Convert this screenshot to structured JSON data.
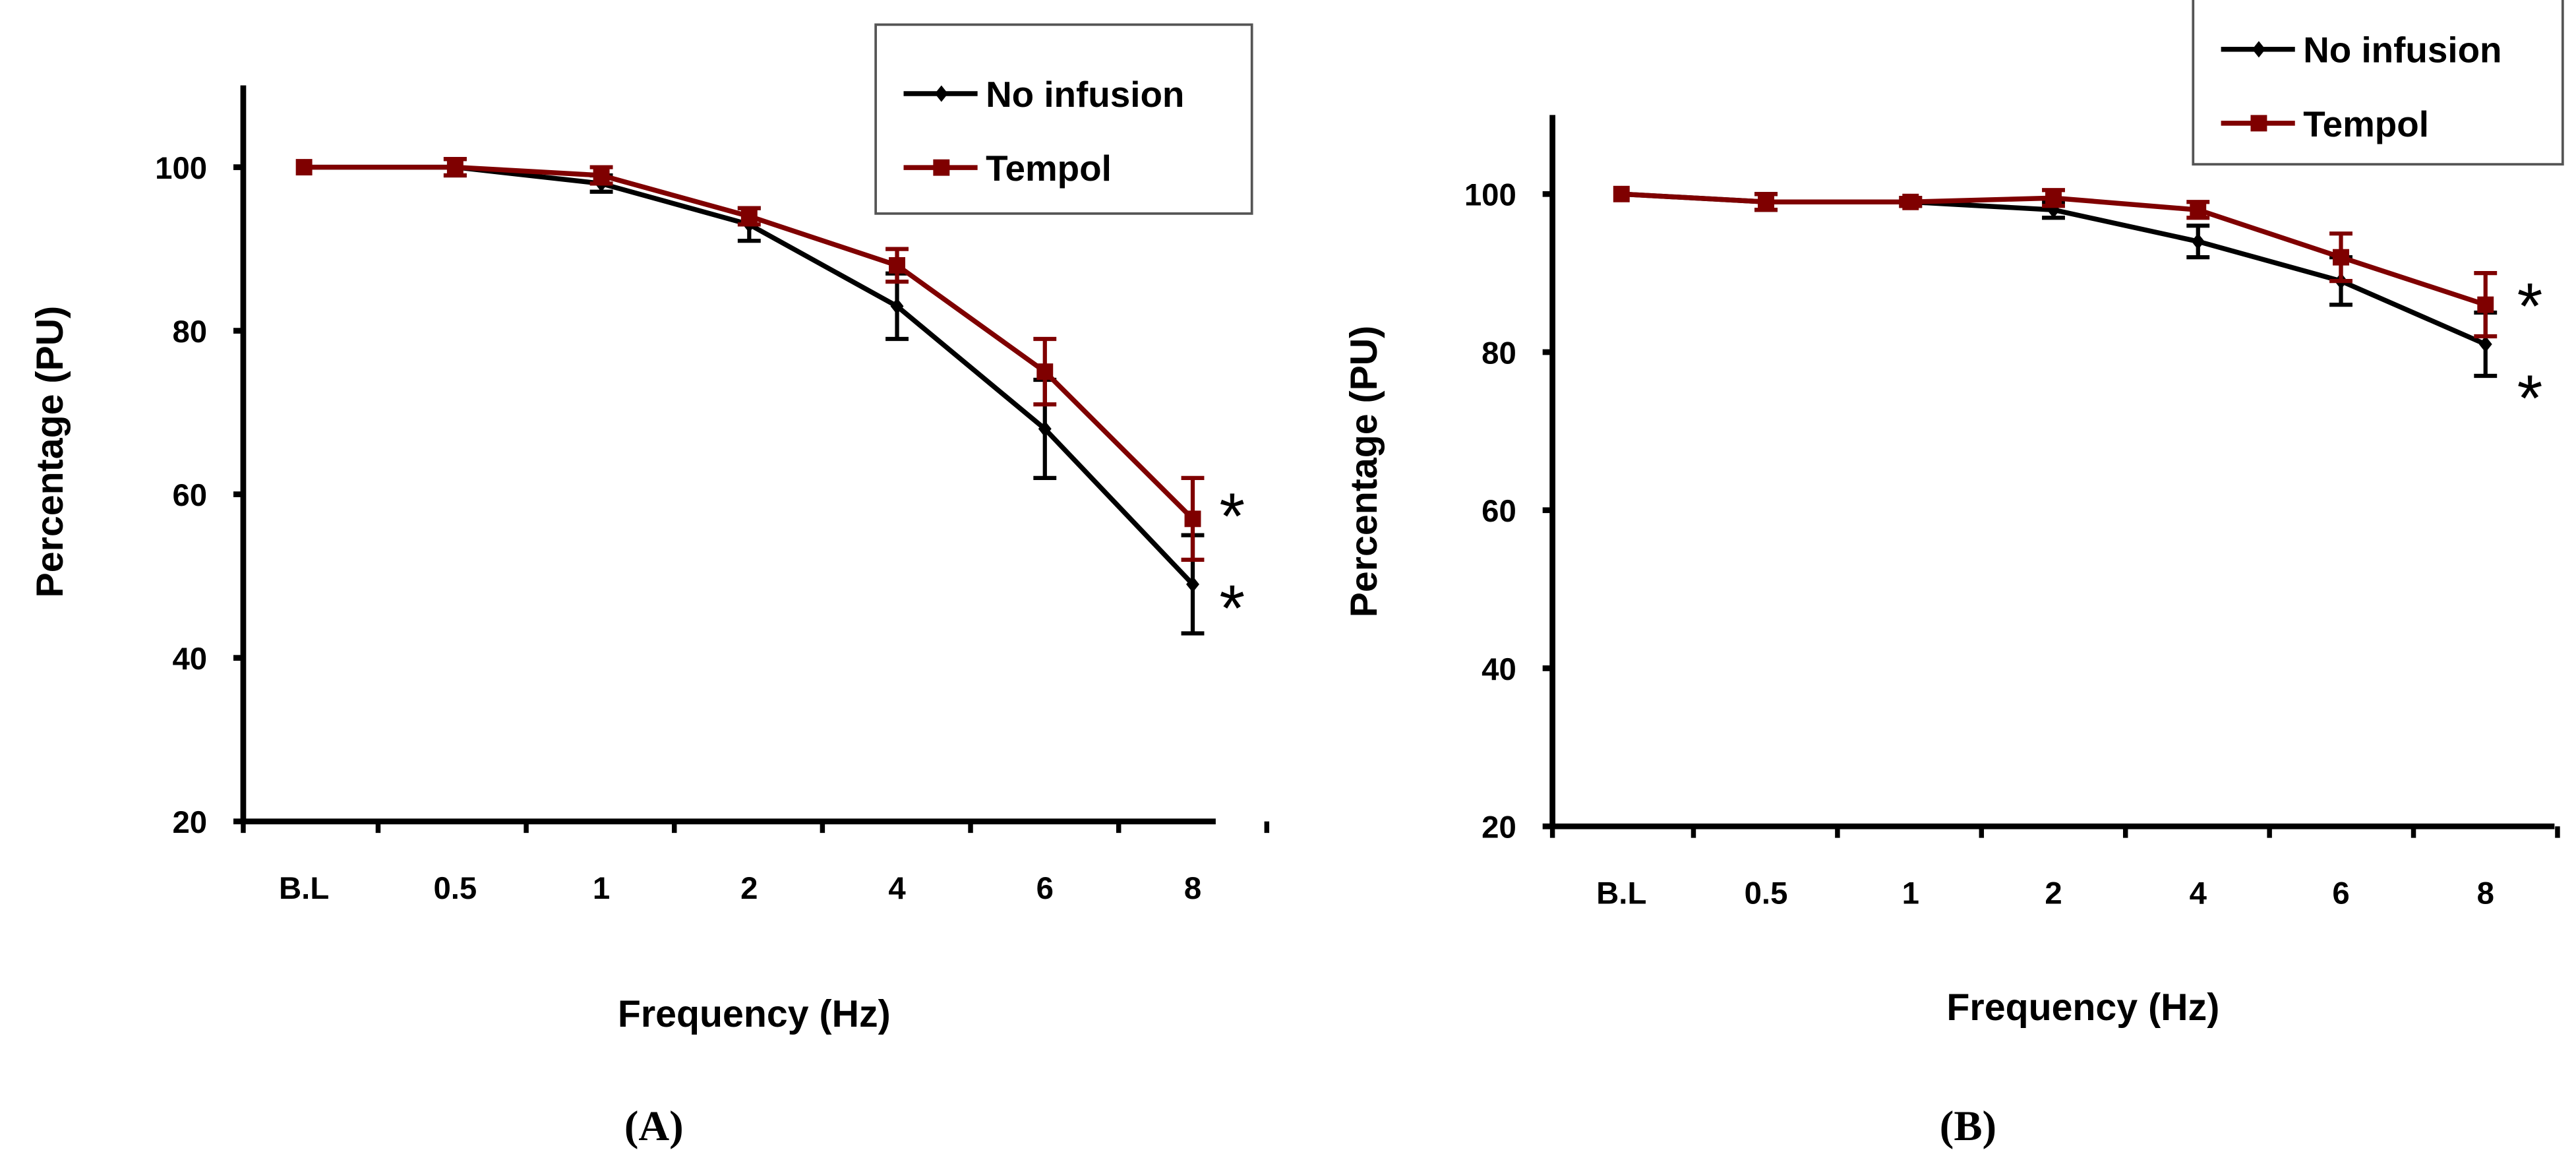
{
  "chart_data": [
    {
      "type": "line",
      "panel_label": "(A)",
      "xlabel": "Frequency (Hz)",
      "ylabel": "Percentage (PU)",
      "categories": [
        "B.L",
        "0.5",
        "1",
        "2",
        "4",
        "6",
        "8"
      ],
      "ylim": [
        20,
        110
      ],
      "yticks": [
        "20",
        "40",
        "60",
        "80",
        "100"
      ],
      "grid": false,
      "legend_position": "top-right",
      "series": [
        {
          "name": "No infusion",
          "color": "#000000",
          "marker": "diamond",
          "values": [
            100,
            100,
            98,
            93,
            83,
            68,
            49
          ],
          "errors": [
            0,
            1,
            1,
            2,
            4,
            6,
            6
          ]
        },
        {
          "name": "Tempol",
          "color": "#7f0000",
          "marker": "square",
          "values": [
            100,
            100,
            99,
            94,
            88,
            75,
            57
          ],
          "errors": [
            0,
            1,
            1,
            1,
            2,
            4,
            5
          ]
        }
      ],
      "annotations": [
        "*",
        "*"
      ]
    },
    {
      "type": "line",
      "panel_label": "(B)",
      "xlabel": "Frequency (Hz)",
      "ylabel": "Percentage (PU)",
      "categories": [
        "B.L",
        "0.5",
        "1",
        "2",
        "4",
        "6",
        "8"
      ],
      "ylim": [
        20,
        110
      ],
      "yticks": [
        "20",
        "40",
        "60",
        "80",
        "100"
      ],
      "grid": false,
      "legend_position": "top-right",
      "series": [
        {
          "name": "No infusion",
          "color": "#000000",
          "marker": "diamond",
          "values": [
            100,
            99,
            99,
            98,
            94,
            89,
            81
          ],
          "errors": [
            0,
            1,
            0.5,
            1,
            2,
            3,
            4
          ]
        },
        {
          "name": "Tempol",
          "color": "#7f0000",
          "marker": "square",
          "values": [
            100,
            99,
            99,
            99.5,
            98,
            92,
            86
          ],
          "errors": [
            0,
            1,
            0.5,
            1,
            1,
            3,
            4
          ]
        }
      ],
      "annotations": [
        "*",
        "*"
      ]
    }
  ]
}
